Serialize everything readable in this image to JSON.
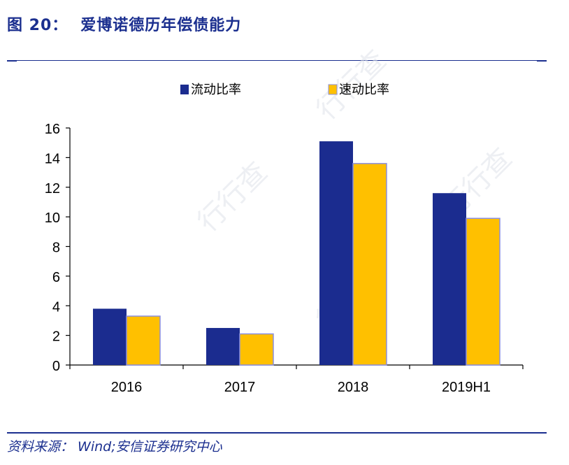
{
  "header": {
    "figure_no": "图 20：",
    "title": "爱博诺德历年偿债能力"
  },
  "footer": {
    "source": "资料来源： Wind;安信证券研究中心"
  },
  "watermark": {
    "text": "行行查"
  },
  "colors": {
    "series1": "#1b2c8f",
    "series2": "#ffc000",
    "series2_edge": "#8a8fe0",
    "brand": "#1b2f8f"
  },
  "chart_data": {
    "type": "bar",
    "categories": [
      "2016",
      "2017",
      "2018",
      "2019H1"
    ],
    "series": [
      {
        "name": "流动比率",
        "values": [
          3.8,
          2.5,
          15.1,
          11.6
        ]
      },
      {
        "name": "速动比率",
        "values": [
          3.3,
          2.1,
          13.6,
          9.9
        ]
      }
    ],
    "ylim": [
      0,
      16
    ],
    "yticks": [
      "0",
      "2",
      "4",
      "6",
      "8",
      "10",
      "12",
      "14",
      "16"
    ],
    "legend_position": "top-center",
    "grid": false
  }
}
